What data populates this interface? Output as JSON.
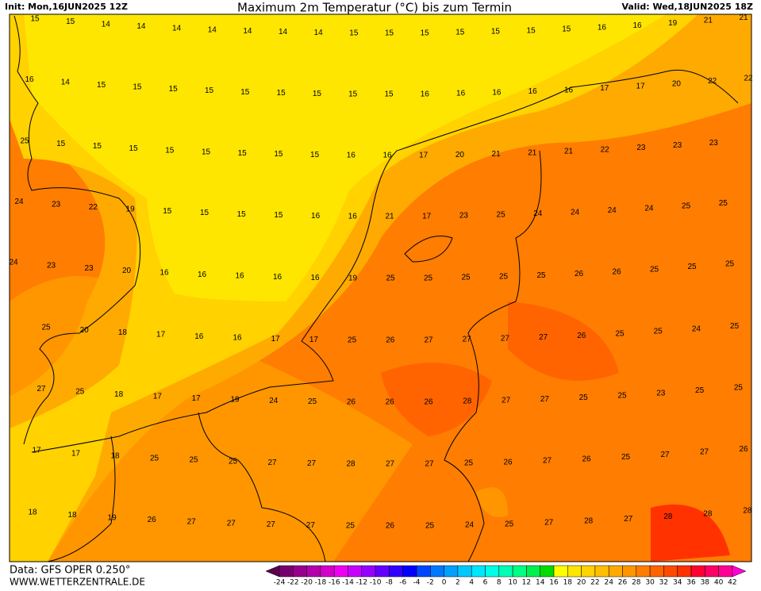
{
  "header": {
    "init": "Init: Mon,16JUN2025 12Z",
    "title": "Maximum 2m Temperatur (°C) bis zum Termin",
    "valid": "Valid: Wed,18JUN2025 18Z"
  },
  "footer": {
    "data": "Data: GFS OPER 0.250°",
    "site": "WWW.WETTERZENTRALE.DE"
  },
  "map": {
    "label_rows": [
      [
        15,
        15,
        14,
        14,
        14,
        14,
        14,
        14,
        14,
        15,
        15,
        15,
        15,
        15,
        15,
        15,
        16,
        16,
        19,
        21,
        21
      ],
      [
        16,
        14,
        15,
        15,
        15,
        15,
        15,
        15,
        15,
        15,
        15,
        16,
        16,
        16,
        16,
        16,
        17,
        17,
        20,
        22,
        22
      ],
      [
        25,
        15,
        15,
        15,
        15,
        15,
        15,
        15,
        15,
        16,
        16,
        17,
        20,
        21,
        21,
        21,
        22,
        23,
        23,
        23
      ],
      [
        24,
        23,
        22,
        19,
        15,
        15,
        15,
        15,
        16,
        16,
        21,
        17,
        23,
        25,
        24,
        24,
        24,
        24,
        25,
        25
      ],
      [
        24,
        23,
        23,
        20,
        16,
        16,
        16,
        16,
        16,
        19,
        25,
        25,
        25,
        25,
        25,
        26,
        26,
        25,
        25,
        25
      ],
      [
        25,
        20,
        18,
        17,
        16,
        16,
        17,
        17,
        25,
        26,
        27,
        27,
        27,
        27,
        26,
        25,
        25,
        24,
        25
      ],
      [
        27,
        25,
        18,
        17,
        17,
        19,
        24,
        25,
        26,
        26,
        26,
        28,
        27,
        27,
        25,
        25,
        23,
        25,
        25
      ],
      [
        17,
        17,
        18,
        25,
        25,
        25,
        27,
        27,
        28,
        27,
        27,
        25,
        26,
        27,
        26,
        25,
        27,
        27,
        26
      ],
      [
        18,
        18,
        19,
        26,
        27,
        27,
        27,
        27,
        25,
        26,
        25,
        24,
        25,
        27,
        28,
        27,
        28,
        28,
        28
      ]
    ]
  },
  "colorbar": {
    "ticks": [
      -24,
      -22,
      -20,
      -18,
      -16,
      -14,
      -12,
      -10,
      -8,
      -6,
      -4,
      -2,
      0,
      2,
      4,
      6,
      8,
      10,
      12,
      14,
      16,
      18,
      20,
      22,
      24,
      26,
      28,
      30,
      32,
      34,
      36,
      38,
      40,
      42
    ],
    "colors": [
      "#5a0050",
      "#78006e",
      "#96008c",
      "#b400aa",
      "#d200c8",
      "#f000f0",
      "#c800ff",
      "#9600ff",
      "#6400ff",
      "#3200ff",
      "#0000ff",
      "#0046ff",
      "#0078ff",
      "#00a0ff",
      "#00c8ff",
      "#00e6ff",
      "#00ffe6",
      "#00ffb4",
      "#00ff82",
      "#00f050",
      "#00dc00",
      "#ffff00",
      "#ffe600",
      "#ffd200",
      "#ffbe00",
      "#ffaa00",
      "#ff9600",
      "#ff7d00",
      "#ff6400",
      "#ff4b00",
      "#ff3200",
      "#ff0032",
      "#ff0064",
      "#ff0096",
      "#ff00d2"
    ]
  }
}
